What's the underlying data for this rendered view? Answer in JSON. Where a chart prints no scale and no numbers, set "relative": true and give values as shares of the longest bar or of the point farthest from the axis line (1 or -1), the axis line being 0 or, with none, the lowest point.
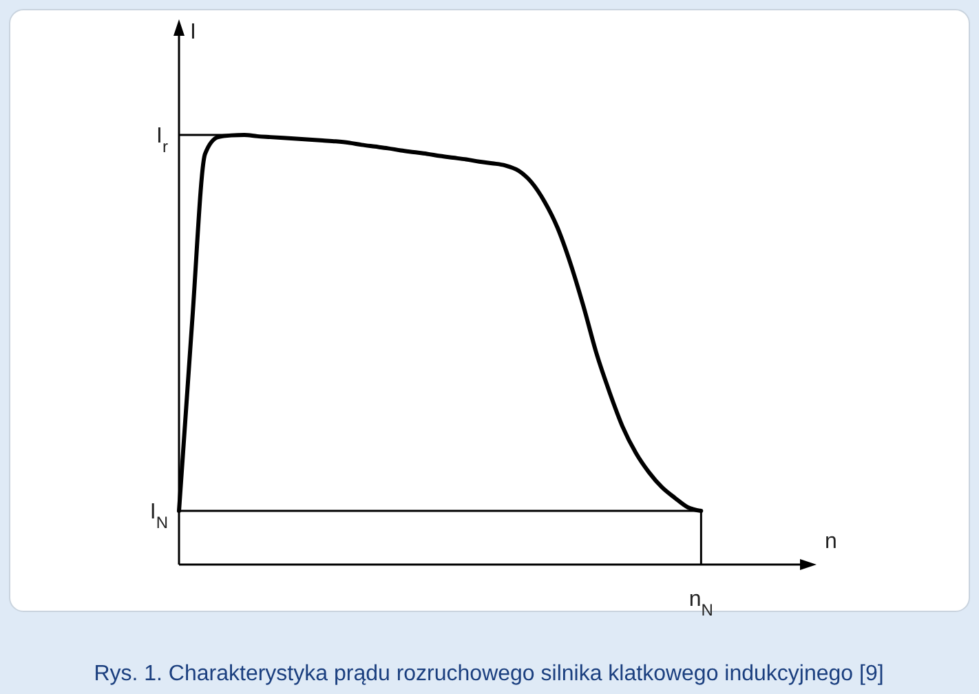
{
  "chart_data": {
    "type": "line",
    "xlabel": "n",
    "ylabel": "I",
    "relative": true,
    "categories": [
      null,
      null,
      null,
      null,
      null,
      null,
      null,
      null,
      null,
      null,
      null,
      null,
      null,
      null,
      null,
      null,
      null,
      null,
      null,
      null,
      null,
      null,
      null,
      null,
      null,
      null,
      null,
      null,
      null,
      null,
      null,
      null,
      null,
      null,
      null,
      null,
      null,
      null,
      null,
      null,
      null,
      null,
      null,
      null,
      null,
      null,
      null,
      null,
      null
    ],
    "series": [
      {
        "color": "#000000",
        "values": [
          0.125,
          0.562,
          0.956,
          0.995,
          0.999,
          1,
          0.997,
          0.995,
          0.993,
          0.991,
          0.989,
          0.987,
          0.985,
          0.982,
          0.977,
          0.973,
          0.969,
          0.964,
          0.96,
          0.956,
          0.951,
          0.947,
          0.943,
          0.938,
          0.934,
          0.929,
          0.917,
          0.89,
          0.845,
          0.784,
          0.7,
          0.6,
          0.49,
          0.4,
          0.32,
          0.26,
          0.215,
          0.18,
          0.155,
          0.133,
          0.125,
          null,
          null,
          null,
          null,
          null,
          null,
          null,
          null
        ]
      }
    ],
    "ref_lines": [
      {
        "axis": "y",
        "value": 1,
        "label": "I$_{r}$",
        "color": "#000000"
      },
      {
        "axis": "y",
        "value": 0.125,
        "label": "I$_{N}$",
        "color": "#000000"
      }
    ],
    "annotations": [
      "n$_{N}$",
      "Rys. 1. Charakterystyka prądu rozruchowego silnika klatkowego indukcyjnego [9]"
    ]
  }
}
